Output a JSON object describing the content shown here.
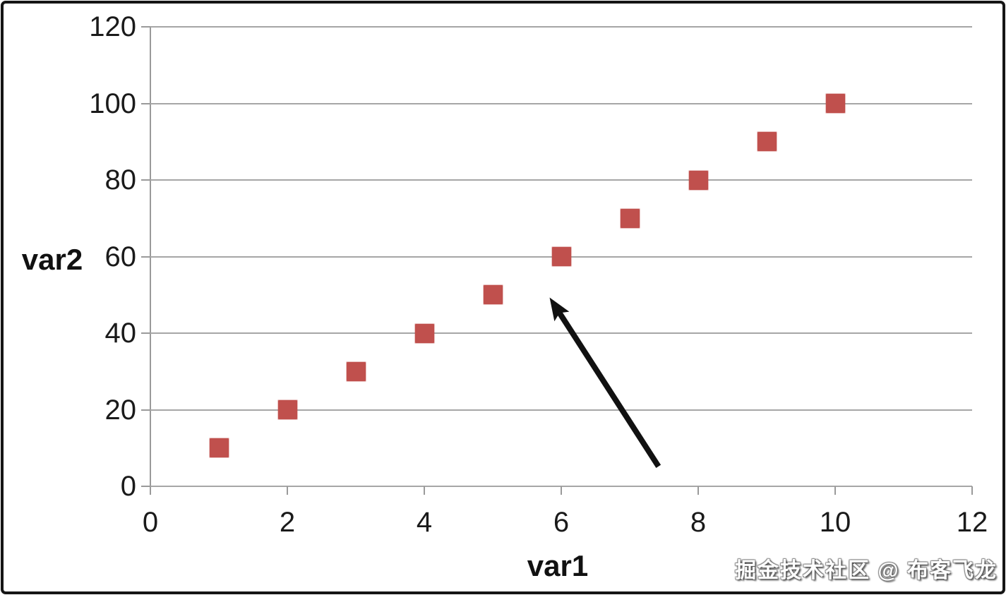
{
  "watermark": "掘金技术社区 @ 布客飞龙",
  "chart_data": {
    "type": "scatter",
    "title": "",
    "xlabel": "var1",
    "ylabel": "var2",
    "x": [
      1,
      2,
      3,
      4,
      5,
      6,
      7,
      8,
      9,
      10
    ],
    "y": [
      10,
      20,
      30,
      40,
      50,
      60,
      70,
      80,
      90,
      100
    ],
    "xlim": [
      0,
      12
    ],
    "ylim": [
      0,
      120
    ],
    "xticks": [
      0,
      2,
      4,
      6,
      8,
      10,
      12
    ],
    "yticks": [
      0,
      20,
      40,
      60,
      80,
      100,
      120
    ],
    "grid": "horizontal",
    "legend": "none",
    "marker": {
      "shape": "square",
      "size": 27,
      "color": "#c0504d"
    },
    "colors": {
      "gridline": "#a6a6a6",
      "axis": "#9a9a9a",
      "tick_label": "#1a1a1a",
      "frame": "#151515",
      "background": "#ffffff",
      "arrow": "#111111"
    },
    "annotation_arrow": {
      "from_xy": [
        7.42,
        5.2
      ],
      "to_xy": [
        5.83,
        49.3
      ],
      "color": "#111111"
    }
  }
}
